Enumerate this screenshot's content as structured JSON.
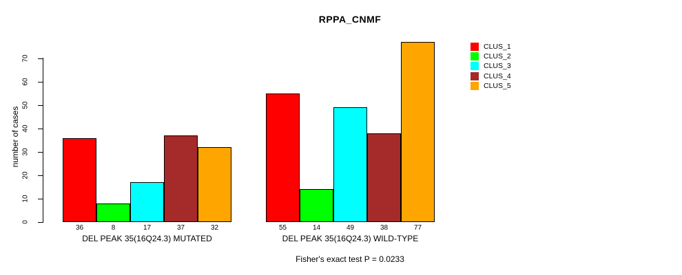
{
  "chart_data": {
    "type": "bar",
    "title": "RPPA_CNMF",
    "ylabel": "number of cases",
    "xlabel": "",
    "note": "Fisher's exact test P = 0.0233",
    "grid": false,
    "legend_position": "right",
    "ylim": [
      0,
      77
    ],
    "y_ticks": [
      0,
      10,
      20,
      30,
      40,
      50,
      60,
      70
    ],
    "categories": [
      "CLUS_1",
      "CLUS_2",
      "CLUS_3",
      "CLUS_4",
      "CLUS_5"
    ],
    "colors": [
      "#FF0000",
      "#00FF00",
      "#00FFFF",
      "#A52A2A",
      "#FFA500"
    ],
    "groups": [
      {
        "label": "DEL PEAK 35(16Q24.3) MUTATED",
        "values": [
          36,
          8,
          17,
          37,
          32
        ]
      },
      {
        "label": "DEL PEAK 35(16Q24.3) WILD-TYPE",
        "values": [
          55,
          14,
          49,
          38,
          77
        ]
      }
    ],
    "legend": [
      {
        "label": "CLUS_1",
        "color": "#FF0000"
      },
      {
        "label": "CLUS_2",
        "color": "#00FF00"
      },
      {
        "label": "CLUS_3",
        "color": "#00FFFF"
      },
      {
        "label": "CLUS_4",
        "color": "#A52A2A"
      },
      {
        "label": "CLUS_5",
        "color": "#FFA500"
      }
    ]
  }
}
